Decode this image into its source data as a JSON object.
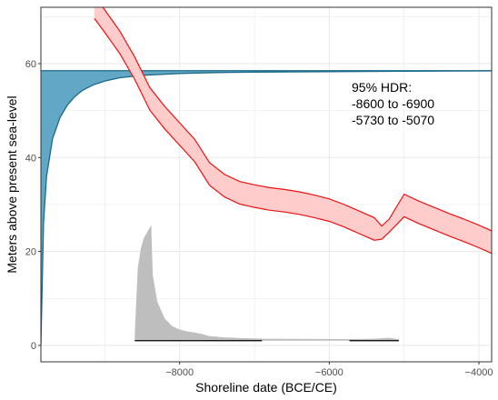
{
  "chart_data": {
    "type": "area",
    "xlabel": "Shoreline date (BCE/CE)",
    "ylabel": "Meters above present sea-level",
    "xlim": [
      -9855,
      -3830
    ],
    "ylim": [
      -3.5,
      72
    ],
    "x_ticks": [
      -8000,
      -6000,
      -4000
    ],
    "y_ticks": [
      0,
      20,
      40,
      60
    ],
    "grid": true,
    "annotation": [
      "95% HDR:",
      "-8600 to -6900",
      "-5730 to -5070"
    ],
    "hdr_intervals": [
      {
        "from": -8600,
        "to": -6900
      },
      {
        "from": -5730,
        "to": -5070
      }
    ],
    "colors": {
      "curve_stroke": "#ee1111",
      "curve_fill": "#ffcccc",
      "elevation_fill": "#62a8c6",
      "elevation_stroke": "#1c6a8c",
      "density_fill": "#bebebe",
      "hdr_line": "#000000",
      "grid": "#ebebeb",
      "border": "#333333"
    },
    "series": [
      {
        "kind": "displacement_curve",
        "x": [
          -9140,
          -9000,
          -8800,
          -8600,
          -8400,
          -8200,
          -8000,
          -7800,
          -7600,
          -7400,
          -7200,
          -7000,
          -6800,
          -6600,
          -6400,
          -6200,
          -6000,
          -5800,
          -5600,
          -5400,
          -5300,
          -5200,
          -5000,
          -4800,
          -4600,
          -4400,
          -4200,
          -4000,
          -3830
        ],
        "upper": [
          72,
          69,
          64.5,
          59,
          52.5,
          48.5,
          45,
          41.5,
          36.5,
          34,
          32.5,
          31.8,
          31.2,
          30.8,
          30.3,
          29.6,
          28.8,
          27.6,
          26.2,
          24.8,
          24,
          21.5,
          29.8,
          28.3,
          27,
          25.7,
          24.5,
          23.2,
          22
        ],
        "lower": [
          72,
          69,
          64.5,
          59,
          52.5,
          48.5,
          45,
          41.5,
          36.5,
          34,
          32.5,
          31.8,
          31.2,
          30.8,
          30.3,
          29.6,
          28.8,
          27.6,
          26.2,
          24.8,
          24,
          21.5,
          29.8,
          28.3,
          27,
          25.7,
          24.5,
          23.2,
          22
        ]
      }
    ],
    "site_elevation": {
      "value": 58.5,
      "curve_x": [
        -9855,
        -9820,
        -9780,
        -9700,
        -9600,
        -9500,
        -9400,
        -9300,
        -9150,
        -9000,
        -8800,
        -8500,
        -8000,
        -7500,
        -7000,
        -6000,
        -5000,
        -3830
      ],
      "curve_y": [
        0,
        26,
        36,
        44,
        48.5,
        51.2,
        53,
        54.3,
        55.5,
        56.3,
        57,
        57.5,
        57.9,
        58.1,
        58.2,
        58.3,
        58.4,
        58.45
      ]
    },
    "density": {
      "x": [
        -8600,
        -8560,
        -8520,
        -8480,
        -8440,
        -8400,
        -8380,
        -8360,
        -8300,
        -8200,
        -8100,
        -8000,
        -7900,
        -7800,
        -7700,
        -7600,
        -7400,
        -7200,
        -7000,
        -6900,
        -5730,
        -5400,
        -5200,
        -5070
      ],
      "y": [
        0.05,
        0.55,
        0.7,
        0.78,
        0.82,
        0.86,
        0.88,
        0.5,
        0.3,
        0.17,
        0.11,
        0.085,
        0.07,
        0.062,
        0.05,
        0.035,
        0.025,
        0.02,
        0.018,
        0.015,
        0.012,
        0.015,
        0.022,
        0.01
      ]
    }
  }
}
